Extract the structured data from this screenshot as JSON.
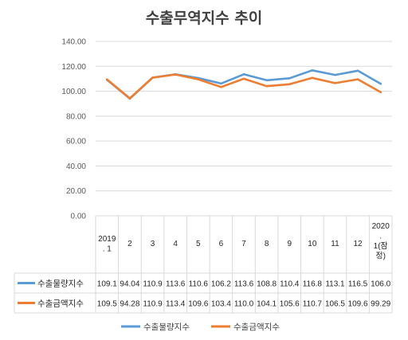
{
  "chart_data": {
    "type": "line",
    "title": "수출무역지수 추이",
    "categories": [
      [
        "2019",
        ". 1"
      ],
      [
        "2"
      ],
      [
        "3"
      ],
      [
        "4"
      ],
      [
        "5"
      ],
      [
        "6"
      ],
      [
        "7"
      ],
      [
        "8"
      ],
      [
        "9"
      ],
      [
        "10"
      ],
      [
        "11"
      ],
      [
        "12"
      ],
      [
        "2020",
        ".",
        "1(잠",
        "정)"
      ]
    ],
    "ylim": [
      0,
      140
    ],
    "yticks": [
      "0.00",
      "20.00",
      "40.00",
      "60.00",
      "80.00",
      "100.00",
      "120.00",
      "140.00"
    ],
    "ytick_values": [
      0,
      20,
      40,
      60,
      80,
      100,
      120,
      140
    ],
    "grid": true,
    "legend_position": "bottom",
    "data_table": true,
    "series": [
      {
        "name": "수출물량지수",
        "color": "#5B9BD5",
        "values": [
          109.1,
          94.04,
          110.9,
          113.6,
          110.6,
          106.2,
          113.6,
          108.8,
          110.4,
          116.8,
          113.1,
          116.5,
          106.0
        ],
        "labels": [
          "109.1",
          "94.04",
          "110.9",
          "113.6",
          "110.6",
          "106.2",
          "113.6",
          "108.8",
          "110.4",
          "116.8",
          "113.1",
          "116.5",
          "106.0"
        ]
      },
      {
        "name": "수출금액지수",
        "color": "#ED7D31",
        "values": [
          109.5,
          94.28,
          110.9,
          113.4,
          109.6,
          103.4,
          110.0,
          104.1,
          105.6,
          110.7,
          106.5,
          109.6,
          99.29
        ],
        "labels": [
          "109.5",
          "94.28",
          "110.9",
          "113.4",
          "109.6",
          "103.4",
          "110.0",
          "104.1",
          "105.6",
          "110.7",
          "106.5",
          "109.6",
          "99.29"
        ]
      }
    ]
  }
}
